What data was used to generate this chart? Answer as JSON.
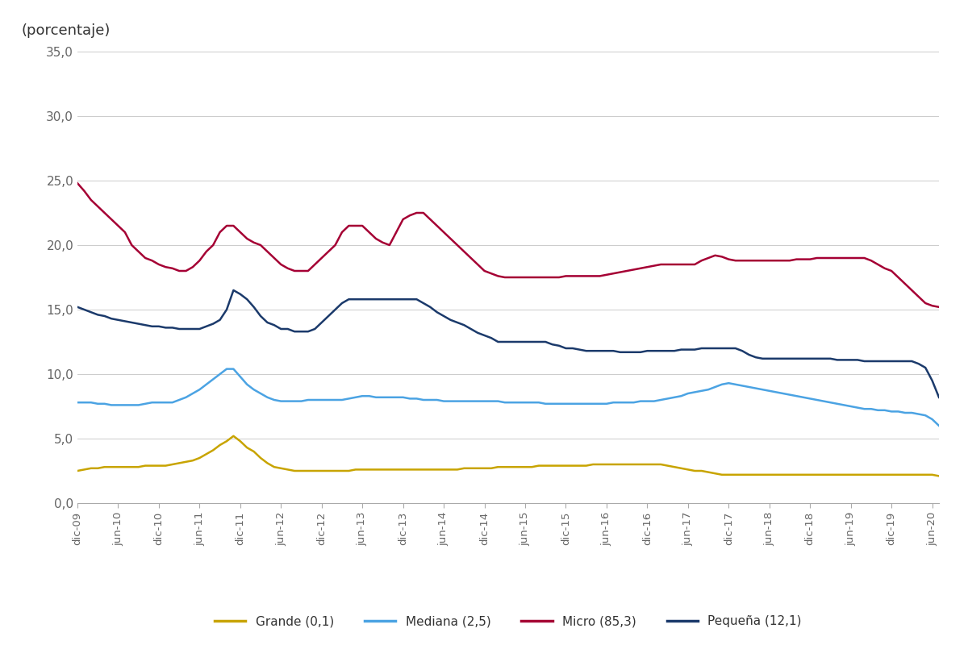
{
  "ylabel": "(porcentaje)",
  "ylim": [
    0,
    35
  ],
  "yticks": [
    0.0,
    5.0,
    10.0,
    15.0,
    20.0,
    25.0,
    30.0,
    35.0
  ],
  "colors": {
    "Grande": "#C8A400",
    "Mediana": "#4BA3E3",
    "Micro": "#A50034",
    "Pequeña": "#1B3A6B"
  },
  "x_tick_positions": [
    0,
    6,
    12,
    18,
    24,
    30,
    36,
    42,
    48,
    54,
    60,
    66,
    72,
    78,
    84,
    90,
    96,
    102,
    108,
    114,
    120,
    126
  ],
  "x_labels": [
    "dic-09",
    "jun-10",
    "dic-10",
    "jun-11",
    "dic-11",
    "jun-12",
    "dic-12",
    "jun-13",
    "dic-13",
    "jun-14",
    "dic-14",
    "jun-15",
    "dic-15",
    "jun-16",
    "dic-16",
    "jun-17",
    "dic-17",
    "jun-18",
    "dic-18",
    "jun-19",
    "dic-19",
    "jun-20"
  ],
  "Grande": [
    2.5,
    2.6,
    2.7,
    2.7,
    2.8,
    2.8,
    2.8,
    2.8,
    2.8,
    2.8,
    2.9,
    2.9,
    2.9,
    2.9,
    3.0,
    3.1,
    3.2,
    3.3,
    3.5,
    3.8,
    4.1,
    4.5,
    4.8,
    5.2,
    4.8,
    4.3,
    4.0,
    3.5,
    3.1,
    2.8,
    2.7,
    2.6,
    2.5,
    2.5,
    2.5,
    2.5,
    2.5,
    2.5,
    2.5,
    2.5,
    2.5,
    2.6,
    2.6,
    2.6,
    2.6,
    2.6,
    2.6,
    2.6,
    2.6,
    2.6,
    2.6,
    2.6,
    2.6,
    2.6,
    2.6,
    2.6,
    2.6,
    2.7,
    2.7,
    2.7,
    2.7,
    2.7,
    2.8,
    2.8,
    2.8,
    2.8,
    2.8,
    2.8,
    2.9,
    2.9,
    2.9,
    2.9,
    2.9,
    2.9,
    2.9,
    2.9,
    3.0,
    3.0,
    3.0,
    3.0,
    3.0,
    3.0,
    3.0,
    3.0,
    3.0,
    3.0,
    3.0,
    2.9,
    2.8,
    2.7,
    2.6,
    2.5,
    2.5,
    2.4,
    2.3,
    2.2,
    2.2,
    2.2,
    2.2,
    2.2,
    2.2,
    2.2,
    2.2,
    2.2,
    2.2,
    2.2,
    2.2,
    2.2,
    2.2,
    2.2,
    2.2,
    2.2,
    2.2,
    2.2,
    2.2,
    2.2,
    2.2,
    2.2,
    2.2,
    2.2,
    2.2,
    2.2,
    2.2,
    2.2,
    2.2,
    2.2,
    2.2,
    2.1
  ],
  "Mediana": [
    7.8,
    7.8,
    7.8,
    7.7,
    7.7,
    7.6,
    7.6,
    7.6,
    7.6,
    7.6,
    7.7,
    7.8,
    7.8,
    7.8,
    7.8,
    8.0,
    8.2,
    8.5,
    8.8,
    9.2,
    9.6,
    10.0,
    10.4,
    10.4,
    9.8,
    9.2,
    8.8,
    8.5,
    8.2,
    8.0,
    7.9,
    7.9,
    7.9,
    7.9,
    8.0,
    8.0,
    8.0,
    8.0,
    8.0,
    8.0,
    8.1,
    8.2,
    8.3,
    8.3,
    8.2,
    8.2,
    8.2,
    8.2,
    8.2,
    8.1,
    8.1,
    8.0,
    8.0,
    8.0,
    7.9,
    7.9,
    7.9,
    7.9,
    7.9,
    7.9,
    7.9,
    7.9,
    7.9,
    7.8,
    7.8,
    7.8,
    7.8,
    7.8,
    7.8,
    7.7,
    7.7,
    7.7,
    7.7,
    7.7,
    7.7,
    7.7,
    7.7,
    7.7,
    7.7,
    7.8,
    7.8,
    7.8,
    7.8,
    7.9,
    7.9,
    7.9,
    8.0,
    8.1,
    8.2,
    8.3,
    8.5,
    8.6,
    8.7,
    8.8,
    9.0,
    9.2,
    9.3,
    9.2,
    9.1,
    9.0,
    8.9,
    8.8,
    8.7,
    8.6,
    8.5,
    8.4,
    8.3,
    8.2,
    8.1,
    8.0,
    7.9,
    7.8,
    7.7,
    7.6,
    7.5,
    7.4,
    7.3,
    7.3,
    7.2,
    7.2,
    7.1,
    7.1,
    7.0,
    7.0,
    6.9,
    6.8,
    6.5,
    6.0
  ],
  "Micro": [
    24.8,
    24.2,
    23.5,
    23.0,
    22.5,
    22.0,
    21.5,
    21.0,
    20.0,
    19.5,
    19.0,
    18.8,
    18.5,
    18.3,
    18.2,
    18.0,
    18.0,
    18.3,
    18.8,
    19.5,
    20.0,
    21.0,
    21.5,
    21.5,
    21.0,
    20.5,
    20.2,
    20.0,
    19.5,
    19.0,
    18.5,
    18.2,
    18.0,
    18.0,
    18.0,
    18.5,
    19.0,
    19.5,
    20.0,
    21.0,
    21.5,
    21.5,
    21.5,
    21.0,
    20.5,
    20.2,
    20.0,
    21.0,
    22.0,
    22.3,
    22.5,
    22.5,
    22.0,
    21.5,
    21.0,
    20.5,
    20.0,
    19.5,
    19.0,
    18.5,
    18.0,
    17.8,
    17.6,
    17.5,
    17.5,
    17.5,
    17.5,
    17.5,
    17.5,
    17.5,
    17.5,
    17.5,
    17.6,
    17.6,
    17.6,
    17.6,
    17.6,
    17.6,
    17.7,
    17.8,
    17.9,
    18.0,
    18.1,
    18.2,
    18.3,
    18.4,
    18.5,
    18.5,
    18.5,
    18.5,
    18.5,
    18.5,
    18.8,
    19.0,
    19.2,
    19.1,
    18.9,
    18.8,
    18.8,
    18.8,
    18.8,
    18.8,
    18.8,
    18.8,
    18.8,
    18.8,
    18.9,
    18.9,
    18.9,
    19.0,
    19.0,
    19.0,
    19.0,
    19.0,
    19.0,
    19.0,
    19.0,
    18.8,
    18.5,
    18.2,
    18.0,
    17.5,
    17.0,
    16.5,
    16.0,
    15.5,
    15.3,
    15.2
  ],
  "Pequeña": [
    15.2,
    15.0,
    14.8,
    14.6,
    14.5,
    14.3,
    14.2,
    14.1,
    14.0,
    13.9,
    13.8,
    13.7,
    13.7,
    13.6,
    13.6,
    13.5,
    13.5,
    13.5,
    13.5,
    13.7,
    13.9,
    14.2,
    15.0,
    16.5,
    16.2,
    15.8,
    15.2,
    14.5,
    14.0,
    13.8,
    13.5,
    13.5,
    13.3,
    13.3,
    13.3,
    13.5,
    14.0,
    14.5,
    15.0,
    15.5,
    15.8,
    15.8,
    15.8,
    15.8,
    15.8,
    15.8,
    15.8,
    15.8,
    15.8,
    15.8,
    15.8,
    15.5,
    15.2,
    14.8,
    14.5,
    14.2,
    14.0,
    13.8,
    13.5,
    13.2,
    13.0,
    12.8,
    12.5,
    12.5,
    12.5,
    12.5,
    12.5,
    12.5,
    12.5,
    12.5,
    12.3,
    12.2,
    12.0,
    12.0,
    11.9,
    11.8,
    11.8,
    11.8,
    11.8,
    11.8,
    11.7,
    11.7,
    11.7,
    11.7,
    11.8,
    11.8,
    11.8,
    11.8,
    11.8,
    11.9,
    11.9,
    11.9,
    12.0,
    12.0,
    12.0,
    12.0,
    12.0,
    12.0,
    11.8,
    11.5,
    11.3,
    11.2,
    11.2,
    11.2,
    11.2,
    11.2,
    11.2,
    11.2,
    11.2,
    11.2,
    11.2,
    11.2,
    11.1,
    11.1,
    11.1,
    11.1,
    11.0,
    11.0,
    11.0,
    11.0,
    11.0,
    11.0,
    11.0,
    11.0,
    10.8,
    10.5,
    9.5,
    8.2
  ]
}
